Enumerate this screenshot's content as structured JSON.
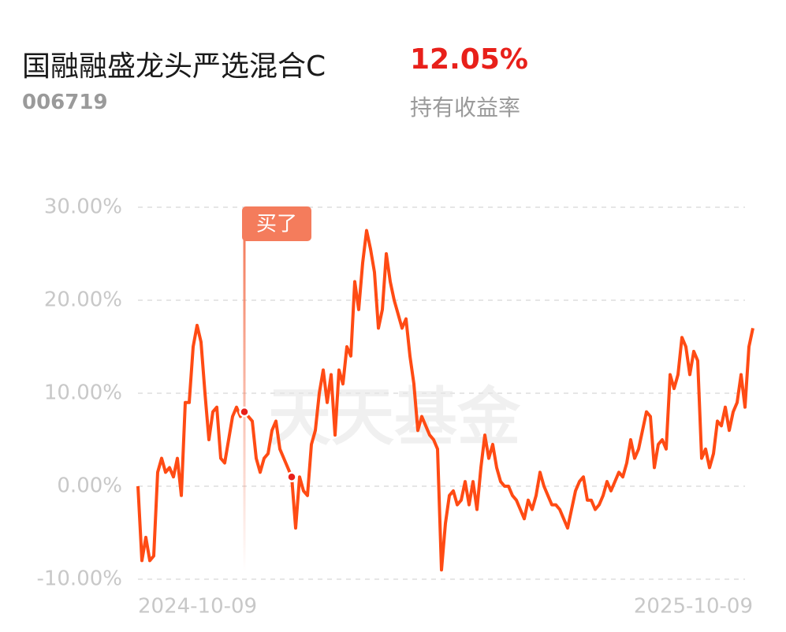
{
  "header": {
    "name": "国融融盛龙头严选混合C",
    "return": "12.05%",
    "code": "006719",
    "return_label": "持有收益率"
  },
  "chart_data": {
    "type": "line",
    "watermark": "天天基金",
    "annotation": "买了",
    "categories": [
      "2024-10-09",
      null,
      null,
      null,
      null,
      null,
      null,
      null,
      null,
      null,
      null,
      null,
      null,
      null,
      null,
      null,
      null,
      null,
      null,
      null,
      null,
      null,
      null,
      null,
      null,
      null,
      null,
      null,
      null,
      null,
      null,
      null,
      null,
      null,
      null,
      null,
      null,
      null,
      null,
      null,
      null,
      null,
      null,
      null,
      null,
      null,
      null,
      null,
      null,
      null,
      null,
      null,
      null,
      null,
      null,
      null,
      null,
      null,
      null,
      null,
      null,
      null,
      null,
      null,
      null,
      null,
      null,
      null,
      null,
      null,
      null,
      null,
      null,
      null,
      null,
      null,
      null,
      null,
      null,
      null,
      null,
      null,
      null,
      null,
      null,
      null,
      null,
      null,
      null,
      null,
      null,
      null,
      null,
      null,
      null,
      null,
      null,
      null,
      null,
      null,
      null,
      null,
      null,
      null,
      null,
      null,
      null,
      null,
      null,
      null,
      null,
      null,
      null,
      null,
      null,
      null,
      null,
      null,
      null,
      null,
      null,
      null,
      null,
      null,
      null,
      null,
      null,
      null,
      null,
      null,
      null,
      null,
      null,
      null,
      null,
      null,
      null,
      null,
      null,
      null,
      null,
      null,
      null,
      null,
      null,
      null,
      null,
      null,
      null,
      null,
      null,
      null,
      null,
      null,
      null,
      null,
      "2025-10-09"
    ],
    "series": [
      {
        "color": "#ff4b14",
        "values": [
          0,
          -8,
          -5.5,
          -8,
          -7.5,
          1.5,
          3,
          1.5,
          2,
          1,
          3,
          -1,
          9,
          9,
          15,
          17.3,
          15.5,
          10,
          5,
          8,
          8.5,
          3,
          2.5,
          5,
          7.5,
          8.5,
          7.5,
          8,
          7.5,
          7,
          3,
          1.5,
          3,
          3.5,
          6,
          7,
          4,
          3,
          2,
          1,
          -4.5,
          1,
          -0.5,
          -1,
          4.5,
          6,
          10,
          12.5,
          9,
          12,
          5.5,
          12.5,
          11,
          15,
          14,
          22,
          19,
          24,
          27.5,
          25.5,
          23,
          17,
          19,
          25,
          22,
          20,
          18.5,
          17,
          18,
          14,
          11,
          6,
          7.5,
          6.5,
          5.5,
          5,
          4,
          -9,
          -4,
          -1,
          -0.5,
          -2,
          -1.5,
          0.5,
          -2,
          0.5,
          -2.5,
          2,
          5.5,
          3,
          4.5,
          2,
          0.5,
          0,
          0,
          -1,
          -1.5,
          -2.5,
          -3.5,
          -1.5,
          -2.5,
          -1,
          1.5,
          0,
          -1,
          -2,
          -2,
          -2.5,
          -3.5,
          -4.5,
          -2.5,
          -0.5,
          0.5,
          1,
          -1.5,
          -1.5,
          -2.5,
          -2,
          -1,
          0.5,
          -0.5,
          0.5,
          1.5,
          1,
          2.5,
          5,
          3,
          4,
          6,
          8,
          7.5,
          2,
          4.5,
          5,
          4,
          12,
          10.5,
          12,
          16,
          15,
          12,
          14.5,
          13.5,
          3,
          4,
          2,
          3.5,
          7,
          6.5,
          8.5,
          6,
          8,
          9,
          12,
          8.5,
          15,
          17
        ]
      }
    ],
    "ylim": [
      -10,
      30
    ],
    "yticks": [
      {
        "value": 30,
        "label": "30.00%"
      },
      {
        "value": 20,
        "label": "20.00%"
      },
      {
        "value": 10,
        "label": "10.00%"
      },
      {
        "value": 0,
        "label": "0.00%"
      },
      {
        "value": -10,
        "label": "-10.00%"
      }
    ],
    "grid": true
  }
}
